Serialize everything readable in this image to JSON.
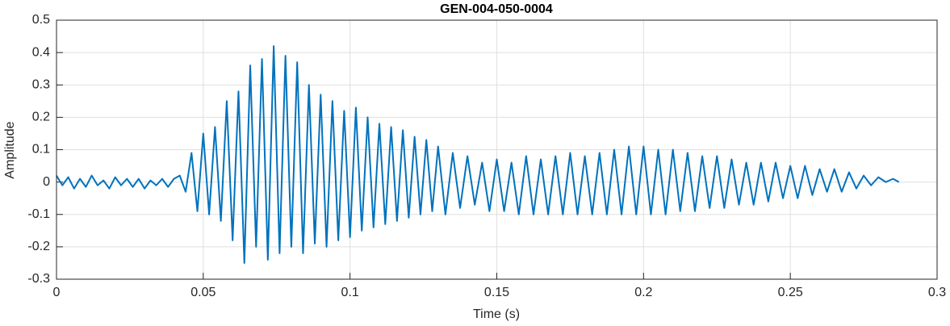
{
  "chart_data": {
    "type": "line",
    "title": "GEN-004-050-0004",
    "xlabel": "Time (s)",
    "ylabel": "Amplitude",
    "color": "#0072bd",
    "grid": true,
    "xlim": [
      0,
      0.3
    ],
    "xticks": [
      0,
      0.05,
      0.1,
      0.15,
      0.2,
      0.25,
      0.3
    ],
    "ylim": [
      -0.3,
      0.5
    ],
    "yticks": [
      -0.3,
      -0.2,
      -0.1,
      0,
      0.1,
      0.2,
      0.3,
      0.4,
      0.5
    ],
    "x": [
      0,
      0.002,
      0.004,
      0.006,
      0.008,
      0.01,
      0.012,
      0.014,
      0.016,
      0.018,
      0.02,
      0.022,
      0.024,
      0.026,
      0.028,
      0.03,
      0.032,
      0.034,
      0.036,
      0.038,
      0.04,
      0.042,
      0.044,
      0.046,
      0.048,
      0.05,
      0.052,
      0.054,
      0.056,
      0.058,
      0.06,
      0.062,
      0.064,
      0.066,
      0.068,
      0.07,
      0.072,
      0.074,
      0.076,
      0.078,
      0.08,
      0.082,
      0.084,
      0.086,
      0.088,
      0.09,
      0.092,
      0.094,
      0.096,
      0.098,
      0.1,
      0.102,
      0.104,
      0.106,
      0.108,
      0.11,
      0.112,
      0.114,
      0.116,
      0.118,
      0.12,
      0.122,
      0.124,
      0.126,
      0.128,
      0.13,
      0.1325,
      0.135,
      0.1375,
      0.14,
      0.1425,
      0.145,
      0.1475,
      0.15,
      0.1525,
      0.155,
      0.1575,
      0.16,
      0.1625,
      0.165,
      0.1675,
      0.17,
      0.1725,
      0.175,
      0.1775,
      0.18,
      0.1825,
      0.185,
      0.1875,
      0.19,
      0.1925,
      0.195,
      0.1975,
      0.2,
      0.2025,
      0.205,
      0.2075,
      0.21,
      0.2125,
      0.215,
      0.2175,
      0.22,
      0.2225,
      0.225,
      0.2275,
      0.23,
      0.2325,
      0.235,
      0.2375,
      0.24,
      0.2425,
      0.245,
      0.2475,
      0.25,
      0.2525,
      0.255,
      0.2575,
      0.26,
      0.2625,
      0.265,
      0.2675,
      0.27,
      0.2725,
      0.275,
      0.2775,
      0.28,
      0.2825,
      0.285,
      0.287
    ],
    "values": [
      0.02,
      -0.01,
      0.015,
      -0.02,
      0.01,
      -0.015,
      0.02,
      -0.01,
      0.005,
      -0.02,
      0.015,
      -0.01,
      0.01,
      -0.015,
      0.01,
      -0.02,
      0.005,
      -0.01,
      0.01,
      -0.015,
      0.01,
      0.02,
      -0.03,
      0.09,
      -0.09,
      0.15,
      -0.1,
      0.17,
      -0.12,
      0.25,
      -0.18,
      0.28,
      -0.25,
      0.36,
      -0.2,
      0.38,
      -0.24,
      0.42,
      -0.22,
      0.39,
      -0.2,
      0.37,
      -0.22,
      0.3,
      -0.19,
      0.27,
      -0.2,
      0.25,
      -0.18,
      0.22,
      -0.17,
      0.23,
      -0.15,
      0.2,
      -0.14,
      0.18,
      -0.13,
      0.17,
      -0.12,
      0.16,
      -0.11,
      0.14,
      -0.1,
      0.13,
      -0.09,
      0.11,
      -0.1,
      0.09,
      -0.08,
      0.08,
      -0.07,
      0.06,
      -0.09,
      0.07,
      -0.09,
      0.06,
      -0.1,
      0.08,
      -0.1,
      0.07,
      -0.1,
      0.08,
      -0.1,
      0.09,
      -0.1,
      0.08,
      -0.1,
      0.09,
      -0.1,
      0.1,
      -0.1,
      0.11,
      -0.1,
      0.11,
      -0.1,
      0.1,
      -0.1,
      0.1,
      -0.09,
      0.09,
      -0.09,
      0.08,
      -0.08,
      0.08,
      -0.08,
      0.07,
      -0.07,
      0.06,
      -0.07,
      0.06,
      -0.06,
      0.06,
      -0.05,
      0.05,
      -0.05,
      0.05,
      -0.04,
      0.04,
      -0.03,
      0.04,
      -0.03,
      0.03,
      -0.02,
      0.02,
      -0.01,
      0.015,
      0,
      0.01,
      0
    ]
  }
}
